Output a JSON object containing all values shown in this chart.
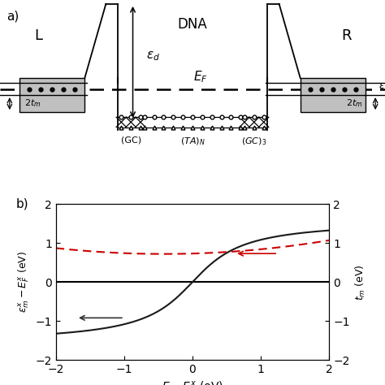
{
  "panel_a": {
    "L_label": "L",
    "R_label": "R",
    "DNA_label": "DNA",
    "EF_label": "$E_F$",
    "epsilon_d_label": "$\\varepsilon_d$",
    "twotm_label": "$2t_m$",
    "GC_label": "(GC)",
    "TAN_label": "$(TA)_N$",
    "GC3_label": "$(GC)_3$",
    "epsilon_right_label": "$\\varepsilon$"
  },
  "panel_b": {
    "xlabel": "$E-E_F^x$ (eV)",
    "ylabel_left": "$\\varepsilon_m^x-E_F^x$ (eV)",
    "ylabel_right": "$t_m$ (eV)",
    "xlim": [
      -2,
      2
    ],
    "ylim": [
      -2,
      2
    ],
    "x_ticks": [
      -2,
      -1,
      0,
      1,
      2
    ],
    "y_ticks": [
      -2,
      -1,
      0,
      1,
      2
    ],
    "solid_line_color": "#1a1a1a",
    "dashed_line_color": "#cc0000",
    "hline_color": "#000000"
  }
}
